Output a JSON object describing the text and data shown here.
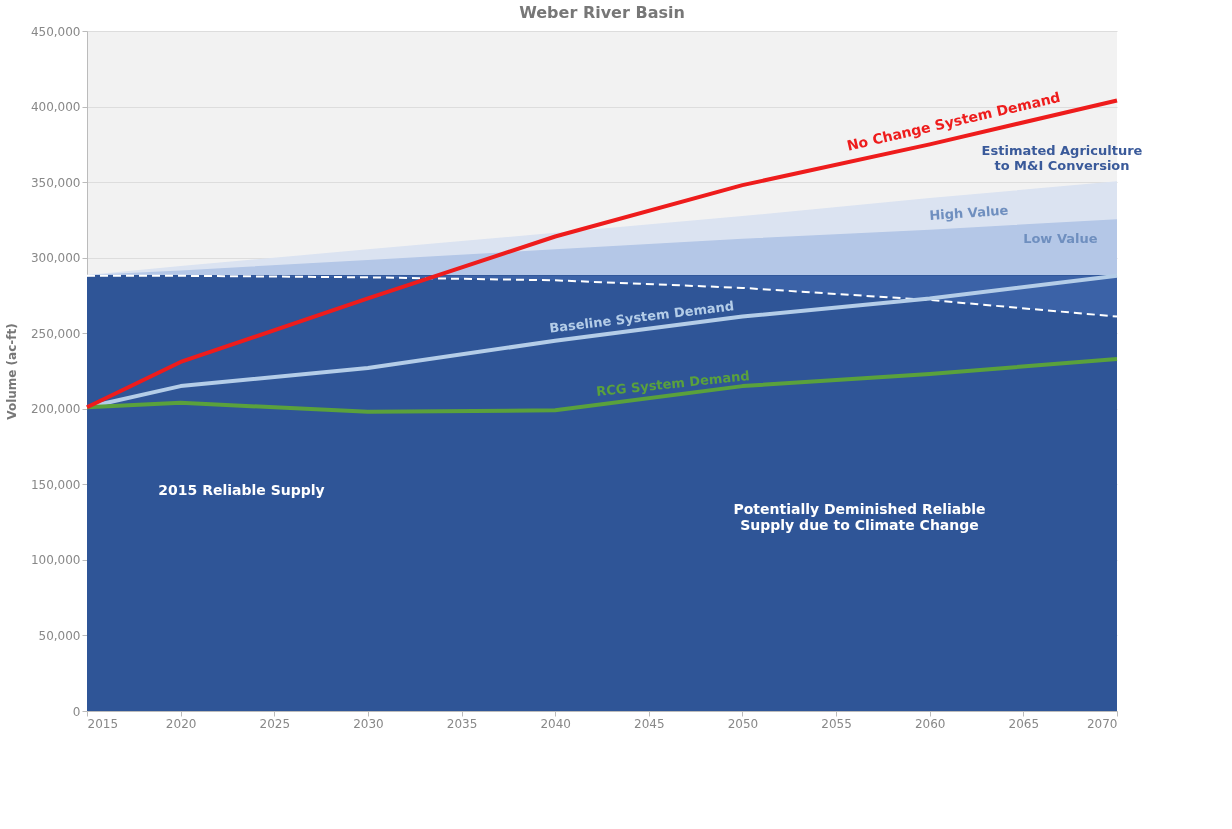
{
  "chart_data": {
    "type": "line",
    "title": "Weber River Basin",
    "ylabel": "Volume (ac-ft)",
    "x": [
      2015,
      2020,
      2030,
      2040,
      2050,
      2060,
      2070
    ],
    "xlim": [
      2015,
      2070
    ],
    "xticks": [
      2015,
      2020,
      2025,
      2030,
      2035,
      2040,
      2045,
      2050,
      2055,
      2060,
      2065,
      2070
    ],
    "ylim": [
      0,
      450000
    ],
    "yticks": [
      {
        "value": 0,
        "label": "0"
      },
      {
        "value": 50000,
        "label": "50,000"
      },
      {
        "value": 100000,
        "label": "100,000"
      },
      {
        "value": 150000,
        "label": "150,000"
      },
      {
        "value": 200000,
        "label": "200,000"
      },
      {
        "value": 250000,
        "label": "250,000"
      },
      {
        "value": 300000,
        "label": "300,000"
      },
      {
        "value": 350000,
        "label": "350,000"
      },
      {
        "value": 400000,
        "label": "400,000"
      },
      {
        "value": 450000,
        "label": "450,000"
      }
    ],
    "grid": "y",
    "series": [
      {
        "name": "High Value",
        "type": "area",
        "color": "#dbe3f1",
        "values": [
          288000,
          294000,
          305000,
          316000,
          327000,
          339000,
          350000
        ]
      },
      {
        "name": "Low Value",
        "type": "area",
        "color": "#b4c7e7",
        "values": [
          288000,
          291000,
          298000,
          305000,
          312000,
          318000,
          325000
        ]
      },
      {
        "name": "2015 Reliable Supply",
        "type": "area",
        "color": "#2f5597",
        "values": [
          288000,
          288000,
          288000,
          288000,
          288000,
          288000,
          288000
        ]
      },
      {
        "name": "Potentially Deminished Reliable\nSupply due to Climate Change",
        "type": "line",
        "line_style": "dashed",
        "color": "#ffffff",
        "values": [
          288000,
          288000,
          287000,
          285000,
          280000,
          272000,
          261000
        ],
        "lower": [
          288000,
          288000,
          287000,
          285000,
          280000,
          272000,
          261000
        ],
        "upper": [
          288000,
          288000,
          288000,
          288000,
          288000,
          288000,
          288000
        ]
      },
      {
        "name": "Baseline System Demand",
        "color": "#b4cde8",
        "values": [
          201000,
          215000,
          227000,
          245000,
          261000,
          273000,
          288000
        ]
      },
      {
        "name": "RCG System Demand",
        "color": "#5aa13c",
        "values": [
          201000,
          204000,
          198000,
          199000,
          215000,
          223000,
          233000
        ]
      },
      {
        "name": "No Change System Demand",
        "color": "#ee1c1c",
        "values": [
          201000,
          231000,
          273000,
          314000,
          348000,
          375000,
          404000
        ]
      }
    ],
    "annotations": [
      "Estimated Agriculture\nto M&I Conversion"
    ]
  }
}
